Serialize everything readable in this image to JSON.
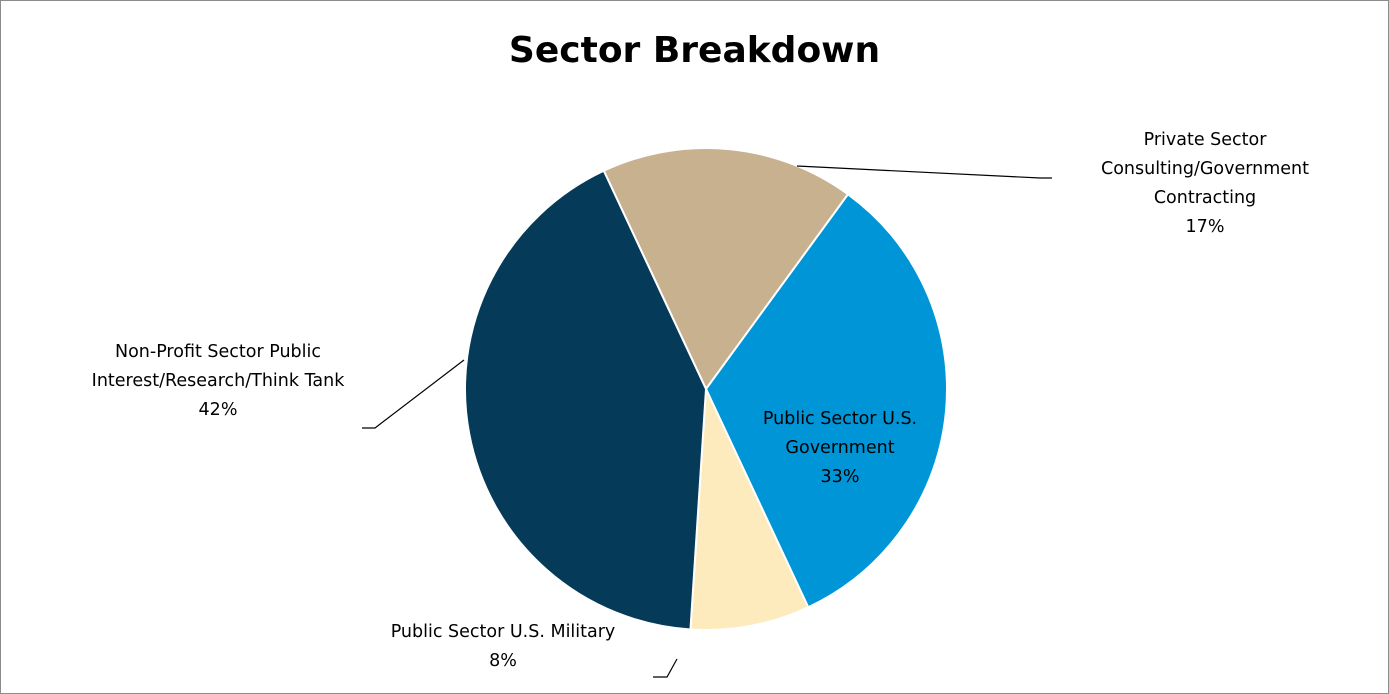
{
  "chart_data": {
    "type": "pie",
    "title": "Sector Breakdown",
    "slices": [
      {
        "label_lines": [
          "Private Sector",
          "Consulting/Government",
          "Contracting"
        ],
        "value": 17,
        "value_label": "17%",
        "color": "#c8b18e"
      },
      {
        "label_lines": [
          "Public Sector U.S.",
          "Government"
        ],
        "value": 33,
        "value_label": "33%",
        "color": "#0095d6"
      },
      {
        "label_lines": [
          "Public Sector U.S. Military"
        ],
        "value": 8,
        "value_label": "8%",
        "color": "#fdebbd"
      },
      {
        "label_lines": [
          "Non-Profit Sector Public",
          "Interest/Research/Think Tank"
        ],
        "value": 42,
        "value_label": "42%",
        "color": "#053a59"
      }
    ],
    "legend": "none"
  }
}
